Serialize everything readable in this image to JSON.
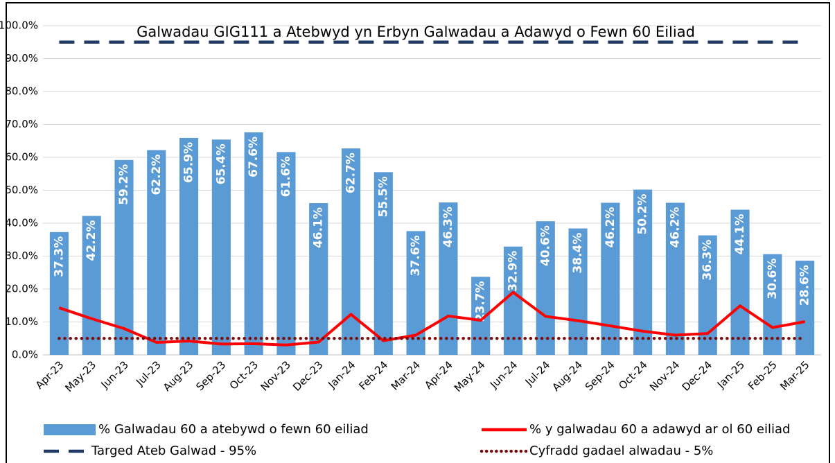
{
  "chart_data": {
    "type": "bar",
    "title": "Galwadau GIG111 a Atebwyd yn Erbyn Galwadau a Adawyd o Fewn 60 Eiliad",
    "categories": [
      "Apr-23",
      "May-23",
      "Jun-23",
      "Jul-23",
      "Aug-23",
      "Sep-23",
      "Oct-23",
      "Nov-23",
      "Dec-23",
      "Jan-24",
      "Feb-24",
      "Mar-24",
      "Apr-24",
      "May-24",
      "Jun-24",
      "Jul-24",
      "Aug-24",
      "Sep-24",
      "Oct-24",
      "Nov-24",
      "Dec-24",
      "Jan-25",
      "Feb-25",
      "Mar-25"
    ],
    "series": [
      {
        "name": "% Galwadau 60 a atebywd o fewn 60 eiliad",
        "kind": "bar",
        "color": "#5b9bd5",
        "values": [
          37.3,
          42.2,
          59.2,
          62.2,
          65.9,
          65.4,
          67.6,
          61.6,
          46.1,
          62.7,
          55.5,
          37.6,
          46.3,
          23.7,
          32.9,
          40.6,
          38.4,
          46.2,
          50.2,
          46.2,
          36.3,
          44.1,
          30.6,
          28.6
        ],
        "value_labels": [
          "37.3%",
          "42.2%",
          "59.2%",
          "62.2%",
          "65.9%",
          "65.4%",
          "67.6%",
          "61.6%",
          "46.1%",
          "62.7%",
          "55.5%",
          "37.6%",
          "46.3%",
          "23.7%",
          "32.9%",
          "40.6%",
          "38.4%",
          "46.2%",
          "50.2%",
          "46.2%",
          "36.3%",
          "44.1%",
          "30.6%",
          "28.6%"
        ]
      },
      {
        "name": "% y galwadau 60 a adawyd ar ol 60 eiliad",
        "kind": "line",
        "dash": "solid",
        "color": "#ff0000",
        "values": [
          14.3,
          11.0,
          8.0,
          3.8,
          4.2,
          3.3,
          3.4,
          3.0,
          3.9,
          12.3,
          4.3,
          6.0,
          11.8,
          10.5,
          19.0,
          11.7,
          10.4,
          8.8,
          7.2,
          6.0,
          6.5,
          14.9,
          8.3,
          10.1
        ]
      },
      {
        "name": "Targed Ateb Galwad - 95%",
        "kind": "line",
        "dash": "dashed",
        "color": "#1f3864",
        "values": [
          95,
          95,
          95,
          95,
          95,
          95,
          95,
          95,
          95,
          95,
          95,
          95,
          95,
          95,
          95,
          95,
          95,
          95,
          95,
          95,
          95,
          95,
          95,
          95
        ]
      },
      {
        "name": "Cyfradd gadael alwadau - 5%",
        "kind": "line",
        "dash": "dotted",
        "color": "#7b0c0c",
        "values": [
          5,
          5,
          5,
          5,
          5,
          5,
          5,
          5,
          5,
          5,
          5,
          5,
          5,
          5,
          5,
          5,
          5,
          5,
          5,
          5,
          5,
          5,
          5,
          5
        ]
      }
    ],
    "ylim": [
      0,
      100
    ],
    "yticks": [
      {
        "value": 0,
        "label": "0.0%"
      },
      {
        "value": 10,
        "label": "10.0%"
      },
      {
        "value": 20,
        "label": "20.0%"
      },
      {
        "value": 30,
        "label": "30.0%"
      },
      {
        "value": 40,
        "label": "40.0%"
      },
      {
        "value": 50,
        "label": "50.0%"
      },
      {
        "value": 60,
        "label": "60.0%"
      },
      {
        "value": 70,
        "label": "70.0%"
      },
      {
        "value": 80,
        "label": "80.0%"
      },
      {
        "value": 90,
        "label": "90.0%"
      },
      {
        "value": 100,
        "label": "100.0%"
      }
    ],
    "grid": true
  }
}
